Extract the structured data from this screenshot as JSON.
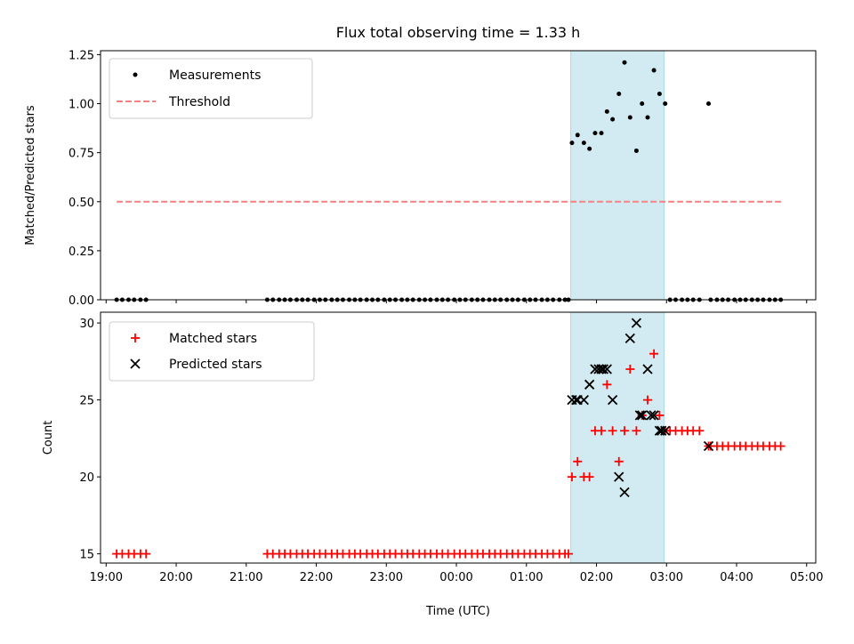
{
  "chart_data": [
    {
      "type": "scatter",
      "title": "Flux total observing time = 1.33 h",
      "xlabel": "",
      "ylabel": "Matched/Predicted stars",
      "ylim": [
        0,
        1.27
      ],
      "yticks": [
        "0.00",
        "0.25",
        "0.50",
        "0.75",
        "1.00",
        "1.25"
      ],
      "ytick_values": [
        0,
        0.25,
        0.5,
        0.75,
        1.0,
        1.25
      ],
      "legend": {
        "placement": "top-left"
      },
      "shaded_region": {
        "start": 1.633,
        "end": 2.967,
        "color": "#add8e6"
      },
      "series": [
        {
          "name": "Measurements",
          "marker": "dot",
          "color": "#000000",
          "x": [
            -4.85,
            -4.77,
            -4.68,
            -4.6,
            -4.51,
            -4.43,
            -2.7,
            -2.62,
            -2.53,
            -2.45,
            -2.37,
            -2.28,
            -2.2,
            -2.12,
            -2.03,
            -1.95,
            -1.87,
            -1.78,
            -1.7,
            -1.62,
            -1.53,
            -1.45,
            -1.37,
            -1.28,
            -1.2,
            -1.12,
            -1.03,
            -0.95,
            -0.87,
            -0.78,
            -0.7,
            -0.62,
            -0.53,
            -0.45,
            -0.37,
            -0.28,
            -0.2,
            -0.12,
            -0.03,
            0.05,
            0.13,
            0.22,
            0.3,
            0.38,
            0.47,
            0.55,
            0.63,
            0.72,
            0.8,
            0.88,
            0.97,
            1.05,
            1.13,
            1.22,
            1.3,
            1.38,
            1.47,
            1.55,
            1.6,
            1.65,
            1.73,
            1.82,
            1.9,
            1.98,
            2.07,
            2.15,
            2.23,
            2.32,
            2.4,
            2.48,
            2.57,
            2.65,
            2.73,
            2.82,
            2.9,
            2.98,
            3.05,
            3.13,
            3.22,
            3.3,
            3.38,
            3.47,
            3.6,
            3.63,
            3.72,
            3.8,
            3.88,
            3.97,
            4.05,
            4.13,
            4.22,
            4.3,
            4.38,
            4.47,
            4.55,
            4.63
          ],
          "y": [
            0,
            0,
            0,
            0,
            0,
            0,
            0,
            0,
            0,
            0,
            0,
            0,
            0,
            0,
            0,
            0,
            0,
            0,
            0,
            0,
            0,
            0,
            0,
            0,
            0,
            0,
            0,
            0,
            0,
            0,
            0,
            0,
            0,
            0,
            0,
            0,
            0,
            0,
            0,
            0,
            0,
            0,
            0,
            0,
            0,
            0,
            0,
            0,
            0,
            0,
            0,
            0,
            0,
            0,
            0,
            0,
            0,
            0,
            0,
            0.8,
            0.84,
            0.8,
            0.77,
            0.85,
            0.85,
            0.96,
            0.92,
            1.05,
            1.21,
            0.93,
            0.76,
            1.0,
            0.93,
            1.17,
            1.05,
            1.0,
            0,
            0,
            0,
            0,
            0,
            0,
            1.0,
            0,
            0,
            0,
            0,
            0,
            0,
            0,
            0,
            0,
            0,
            0,
            0,
            0
          ]
        },
        {
          "name": "Threshold",
          "marker": "dashed-line",
          "color": "#ff7f7f",
          "x": [
            -4.85,
            4.67
          ],
          "y": [
            0.5,
            0.5
          ]
        }
      ]
    },
    {
      "type": "scatter",
      "title": "",
      "xlabel": "Time (UTC)",
      "ylabel": "Count",
      "ylim": [
        14.4,
        30.7
      ],
      "yticks": [
        "15",
        "20",
        "25",
        "30"
      ],
      "ytick_values": [
        15,
        20,
        25,
        30
      ],
      "xlim": [
        -5.08,
        5.13
      ],
      "xticks": [
        "19:00",
        "20:00",
        "21:00",
        "22:00",
        "23:00",
        "00:00",
        "01:00",
        "02:00",
        "03:00",
        "04:00",
        "05:00"
      ],
      "xtick_values": [
        -5,
        -4,
        -3,
        -2,
        -1,
        0,
        1,
        2,
        3,
        4,
        5
      ],
      "legend": {
        "placement": "top-left"
      },
      "shaded_region": {
        "start": 1.633,
        "end": 2.967,
        "color": "#add8e6"
      },
      "series": [
        {
          "name": "Matched stars",
          "marker": "plus",
          "color": "#ff0000",
          "x": [
            -4.85,
            -4.77,
            -4.68,
            -4.6,
            -4.51,
            -4.43,
            -2.7,
            -2.62,
            -2.53,
            -2.45,
            -2.37,
            -2.28,
            -2.2,
            -2.12,
            -2.03,
            -1.95,
            -1.87,
            -1.78,
            -1.7,
            -1.62,
            -1.53,
            -1.45,
            -1.37,
            -1.28,
            -1.2,
            -1.12,
            -1.03,
            -0.95,
            -0.87,
            -0.78,
            -0.7,
            -0.62,
            -0.53,
            -0.45,
            -0.37,
            -0.28,
            -0.2,
            -0.12,
            -0.03,
            0.05,
            0.13,
            0.22,
            0.3,
            0.38,
            0.47,
            0.55,
            0.63,
            0.72,
            0.8,
            0.88,
            0.97,
            1.05,
            1.13,
            1.22,
            1.3,
            1.38,
            1.47,
            1.55,
            1.6,
            1.65,
            1.73,
            1.82,
            1.9,
            1.98,
            2.07,
            2.15,
            2.23,
            2.32,
            2.4,
            2.48,
            2.57,
            2.65,
            2.73,
            2.82,
            2.9,
            2.98,
            3.05,
            3.13,
            3.22,
            3.3,
            3.38,
            3.47,
            3.6,
            3.63,
            3.72,
            3.8,
            3.88,
            3.97,
            4.05,
            4.13,
            4.22,
            4.3,
            4.38,
            4.47,
            4.55,
            4.63
          ],
          "y": [
            15,
            15,
            15,
            15,
            15,
            15,
            15,
            15,
            15,
            15,
            15,
            15,
            15,
            15,
            15,
            15,
            15,
            15,
            15,
            15,
            15,
            15,
            15,
            15,
            15,
            15,
            15,
            15,
            15,
            15,
            15,
            15,
            15,
            15,
            15,
            15,
            15,
            15,
            15,
            15,
            15,
            15,
            15,
            15,
            15,
            15,
            15,
            15,
            15,
            15,
            15,
            15,
            15,
            15,
            15,
            15,
            15,
            15,
            15,
            20,
            21,
            20,
            20,
            23,
            23,
            26,
            23,
            21,
            23,
            27,
            23,
            24,
            25,
            28,
            24,
            23,
            23,
            23,
            23,
            23,
            23,
            23,
            22,
            22,
            22,
            22,
            22,
            22,
            22,
            22,
            22,
            22,
            22,
            22,
            22,
            22
          ]
        },
        {
          "name": "Predicted stars",
          "marker": "x",
          "color": "#000000",
          "x": [
            1.65,
            1.73,
            1.82,
            1.9,
            1.98,
            2.07,
            2.15,
            2.23,
            2.32,
            2.4,
            2.48,
            2.57,
            2.65,
            2.73,
            2.82,
            2.9,
            2.98,
            3.6,
            1.71,
            2.03,
            2.1,
            2.62,
            2.78,
            2.93
          ],
          "y": [
            25,
            25,
            25,
            26,
            27,
            27,
            27,
            25,
            20,
            19,
            29,
            30,
            24,
            27,
            24,
            23,
            23,
            22,
            25,
            27,
            27,
            24,
            24,
            23
          ]
        }
      ]
    }
  ]
}
